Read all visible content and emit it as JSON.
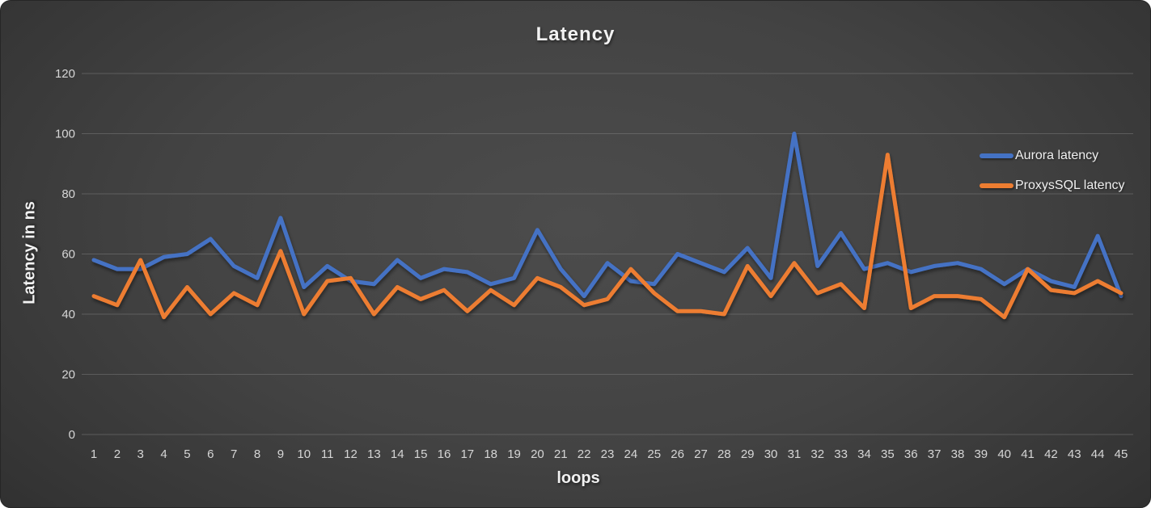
{
  "chart_data": {
    "type": "line",
    "title": "Latency",
    "xlabel": "loops",
    "ylabel": "Latency in ns",
    "ylim": [
      0,
      120
    ],
    "yticks": [
      0,
      20,
      40,
      60,
      80,
      100,
      120
    ],
    "grid": "horizontal",
    "legend_position": "right",
    "categories": [
      1,
      2,
      3,
      4,
      5,
      6,
      7,
      8,
      9,
      10,
      11,
      12,
      13,
      14,
      15,
      16,
      17,
      18,
      19,
      20,
      21,
      22,
      23,
      24,
      25,
      26,
      27,
      28,
      29,
      30,
      31,
      32,
      33,
      34,
      35,
      36,
      37,
      38,
      39,
      40,
      41,
      42,
      43,
      44,
      45
    ],
    "series": [
      {
        "name": "Aurora latency",
        "color": "#4472C4",
        "values": [
          58,
          55,
          55,
          59,
          60,
          65,
          56,
          52,
          72,
          49,
          56,
          51,
          50,
          58,
          52,
          55,
          54,
          50,
          52,
          68,
          55,
          46,
          57,
          51,
          50,
          60,
          57,
          54,
          62,
          52,
          100,
          56,
          67,
          55,
          57,
          54,
          56,
          57,
          55,
          50,
          55,
          51,
          49,
          66,
          46
        ]
      },
      {
        "name": "ProxysSQL latency",
        "color": "#ED7D31",
        "values": [
          46,
          43,
          58,
          39,
          49,
          40,
          47,
          43,
          61,
          40,
          51,
          52,
          40,
          49,
          45,
          48,
          41,
          48,
          43,
          52,
          49,
          43,
          45,
          55,
          47,
          41,
          41,
          40,
          56,
          46,
          57,
          47,
          50,
          42,
          93,
          42,
          46,
          46,
          45,
          39,
          55,
          48,
          47,
          51,
          47
        ]
      }
    ]
  },
  "colors": {
    "background_center": "#4c4c4c",
    "background_edge": "#282828",
    "gridline": "#8a8a8a",
    "tick_text": "#d6d6d6",
    "title_text": "#f2f2f2",
    "series_blue": "#4472C4",
    "series_orange": "#ED7D31"
  }
}
